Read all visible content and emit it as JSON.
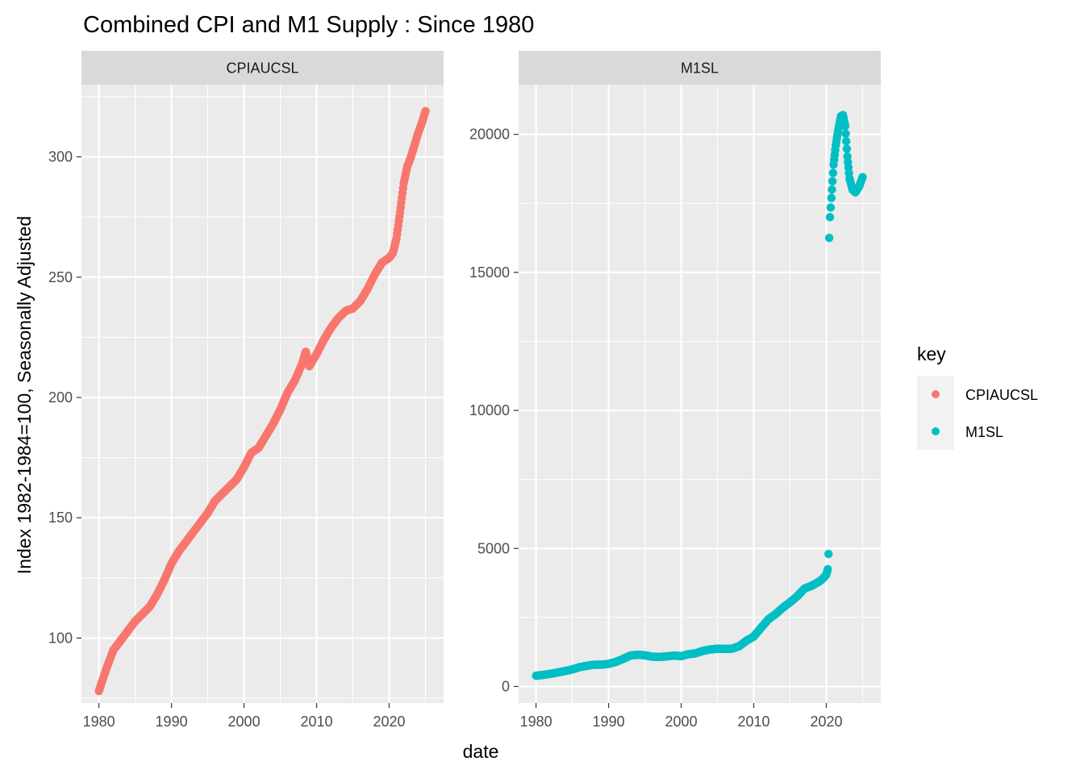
{
  "chart_data": {
    "type": "scatter",
    "title": "Combined CPI and M1 Supply : Since 1980",
    "xlabel": "date",
    "ylabel": "Index 1982-1984=100, Seasonally Adjusted",
    "legend": {
      "title": "key",
      "placement": "right",
      "entries": [
        {
          "label": "CPIAUCSL",
          "color": "#F8766D"
        },
        {
          "label": "M1SL",
          "color": "#00BFC4"
        }
      ]
    },
    "grid": true,
    "panels": [
      {
        "strip": "CPIAUCSL",
        "color": "#F8766D",
        "xlim": [
          1977.6,
          2027.5
        ],
        "ylim": [
          73,
          330
        ],
        "x_ticks": [
          1980,
          1990,
          2000,
          2010,
          2020
        ],
        "x_tick_labels": [
          "1980",
          "1990",
          "2000",
          "2010",
          "2020"
        ],
        "y_ticks": [
          100,
          150,
          200,
          250,
          300
        ],
        "y_tick_labels": [
          "100",
          "150",
          "200",
          "250",
          "300"
        ],
        "x": [
          1980,
          1981,
          1982,
          1983,
          1984,
          1985,
          1986,
          1987,
          1988,
          1989,
          1990,
          1991,
          1992,
          1993,
          1994,
          1995,
          1996,
          1997,
          1998,
          1999,
          2000,
          2001,
          2002,
          2003,
          2004,
          2005,
          2006,
          2007,
          2008,
          2008.5,
          2009,
          2010,
          2011,
          2012,
          2013,
          2014,
          2015,
          2016,
          2017,
          2018,
          2019,
          2020,
          2020.5,
          2021,
          2021.5,
          2022,
          2022.5,
          2023,
          2023.5,
          2024,
          2024.5,
          2025
        ],
        "y": [
          78,
          87,
          95,
          99,
          103,
          107,
          110,
          113,
          118,
          124,
          131,
          136,
          140,
          144,
          148,
          152,
          157,
          160,
          163,
          166,
          171,
          177,
          179,
          184,
          189,
          195,
          202,
          207,
          214,
          219,
          213,
          218,
          224,
          229,
          233,
          236,
          237,
          240,
          245,
          251,
          256,
          258,
          260,
          266,
          277,
          289,
          296,
          300,
          305,
          310,
          314,
          319
        ]
      },
      {
        "strip": "M1SL",
        "color": "#00BFC4",
        "xlim": [
          1977.6,
          2027.5
        ],
        "ylim": [
          -600,
          21800
        ],
        "x_ticks": [
          1980,
          1990,
          2000,
          2010,
          2020
        ],
        "x_tick_labels": [
          "1980",
          "1990",
          "2000",
          "2010",
          "2020"
        ],
        "y_ticks": [
          0,
          5000,
          10000,
          15000,
          20000
        ],
        "y_tick_labels": [
          "0",
          "5000",
          "10000",
          "15000",
          "20000"
        ],
        "x": [
          1980,
          1981,
          1982,
          1983,
          1984,
          1985,
          1986,
          1987,
          1988,
          1989,
          1990,
          1991,
          1992,
          1993,
          1994,
          1995,
          1996,
          1997,
          1998,
          1999,
          2000,
          2001,
          2002,
          2003,
          2004,
          2005,
          2006,
          2007,
          2008,
          2009,
          2010,
          2011,
          2012,
          2013,
          2014,
          2015,
          2016,
          2017,
          2018,
          2019,
          2019.5,
          2020,
          2020.2,
          2020.3,
          2020.4,
          2020.5,
          2020.7,
          2021,
          2021.3,
          2021.6,
          2022,
          2022.3,
          2022.6,
          2022.9,
          2023.2,
          2023.6,
          2024,
          2024.5,
          2025
        ],
        "y": [
          390,
          420,
          460,
          510,
          560,
          620,
          700,
          750,
          790,
          790,
          820,
          890,
          1000,
          1120,
          1150,
          1130,
          1080,
          1070,
          1090,
          1120,
          1100,
          1170,
          1200,
          1290,
          1340,
          1370,
          1360,
          1370,
          1460,
          1660,
          1810,
          2120,
          2430,
          2620,
          2850,
          3050,
          3270,
          3550,
          3650,
          3800,
          3900,
          4050,
          4250,
          4800,
          16250,
          17000,
          17700,
          18900,
          19600,
          20100,
          20650,
          20700,
          20300,
          19200,
          18400,
          18000,
          17900,
          18100,
          18450
        ]
      }
    ]
  }
}
